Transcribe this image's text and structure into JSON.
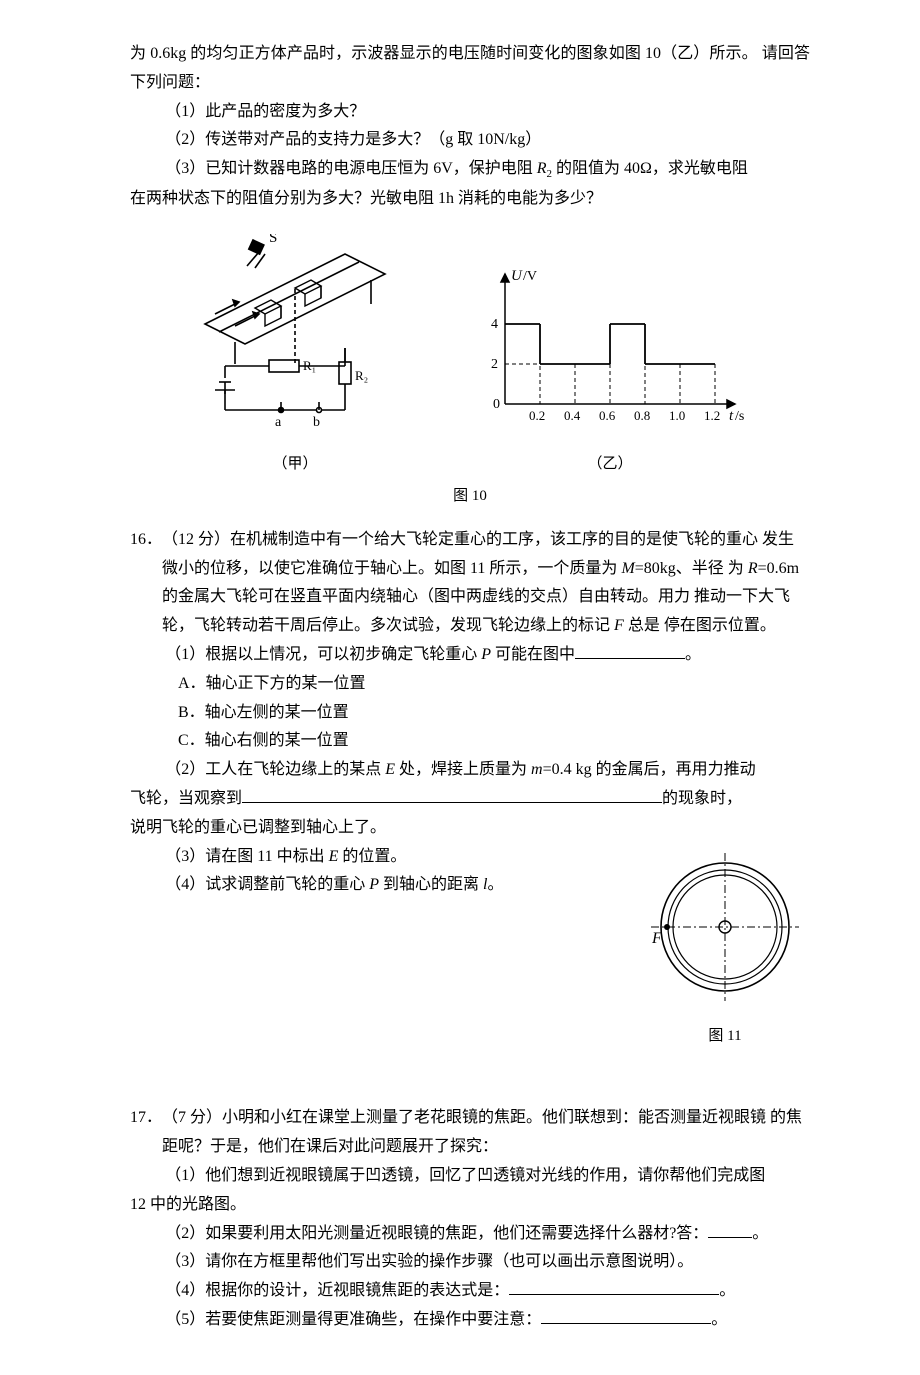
{
  "intro": {
    "line1": "为 0.6kg 的均匀正方体产品时，示波器显示的电压随时间变化的图象如图 10（乙）所示。",
    "line2": "请回答下列问题：",
    "q1": "（1）此产品的密度为多大？",
    "q2": "（2）传送带对产品的支持力是多大？（g 取 10N/kg）",
    "q3a": "（3）已知计数器电路的电源电压恒为 6V，保护电阻 ",
    "q3r": "R",
    "q3sub": "2",
    "q3b": " 的阻值为 40Ω，求光敏电阻",
    "q3c": "在两种状态下的阻值分别为多大？光敏电阻 1h 消耗的电能为多少？"
  },
  "fig10": {
    "caption_jia": "（甲）",
    "caption_yi": "（乙）",
    "caption_main": "图 10",
    "circuit": {
      "labels": {
        "S": "S",
        "R1": "R₁",
        "R2": "R₂",
        "a": "a",
        "b": "b"
      },
      "colors": {
        "stroke": "#000000",
        "bg": "#ffffff"
      }
    },
    "graph": {
      "ylabel": "U/V",
      "xlabel": "t/s",
      "xticks": [
        "0.2",
        "0.4",
        "0.6",
        "0.8",
        "1.0",
        "1.2"
      ],
      "yticks": [
        "0",
        "2",
        "4"
      ],
      "x_origin": "0",
      "y_high": 4,
      "y_low": 2,
      "x_step": 0.2,
      "high_segments": [
        [
          0,
          0.2
        ],
        [
          0.6,
          0.8
        ]
      ],
      "low_segments": [
        [
          0.2,
          0.6
        ],
        [
          0.8,
          1.2
        ]
      ],
      "colors": {
        "axis": "#000000",
        "dash": "#000000",
        "bg": "#ffffff"
      }
    }
  },
  "q16": {
    "num": "16．",
    "points": "（12 分）",
    "l1": "在机械制造中有一个给大飞轮定重心的工序，该工序的目的是使飞轮的重心",
    "l2": "发生微小的位移，以使它准确位于轴心上。如图 11 所示，一个质量为 ",
    "m_lbl": "M",
    "m_val": "=80kg、半径",
    "l3a": "为 ",
    "r_lbl": "R",
    "r_val": "=0.6m 的金属大飞轮可在竖直平面内绕轴心（图中两虚线的交点）自由转动。用力",
    "l4a": "推动一下大飞轮，飞轮转动若干周后停止。多次试验，发现飞轮边缘上的标记 ",
    "f_lbl": "F",
    "l4b": " 总是",
    "l5": "停在图示位置。",
    "s1a": "（1）根据以上情况，可以初步确定飞轮重心 ",
    "p_lbl": "P",
    "s1b": " 可能在图中",
    "s1blank_w": 110,
    "s1c": "。",
    "optA": "A．轴心正下方的某一位置",
    "optB": "B．轴心左侧的某一位置",
    "optC": "C．轴心右侧的某一位置",
    "s2a": "（2）工人在飞轮边缘上的某点 ",
    "e_lbl": "E",
    "s2b": " 处，焊接上质量为 ",
    "m2_lbl": "m",
    "m2_val": "=0.4   kg 的金属后，再用力推动",
    "s2c": "飞轮，当观察到",
    "s2blank_w": 420,
    "s2d": "的现象时，",
    "s2e": "说明飞轮的重心已调整到轴心上了。",
    "s3a": "（3）请在图 11 中标出 ",
    "s3b": " 的位置。",
    "s4a": "（4）试求调整前飞轮的重心 ",
    "s4b": " 到轴心的距离 ",
    "l_lbl": "l",
    "s4c": "。",
    "fig_caption": "图 11",
    "fig": {
      "F_label": "F",
      "stroke": "#000000"
    }
  },
  "q17": {
    "num": "17．",
    "points": "（7 分）",
    "l1": "小明和小红在课堂上测量了老花眼镜的焦距。他们联想到：能否测量近视眼镜",
    "l2": "的焦距呢？于是，他们在课后对此问题展开了探究：",
    "s1a": "（1）他们想到近视眼镜属于凹透镜，回忆了凹透镜对光线的作用，请你帮他们完成图",
    "s1b": "12 中的光路图。",
    "s2a": "（2）如果要利用太阳光测量近视眼镜的焦距，他们还需要选择什么器材?答：",
    "s2blank_w": 44,
    "s2b": "。",
    "s3": "（3）请你在方框里帮他们写出实验的操作步骤（也可以画出示意图说明）。",
    "s4a": "（4）根据你的设计，近视眼镜焦距的表达式是：",
    "s4blank_w": 210,
    "s4b": "。",
    "s5a": "（5）若要使焦距测量得更准确些，在操作中要注意：",
    "s5blank_w": 170,
    "s5b": "。"
  }
}
